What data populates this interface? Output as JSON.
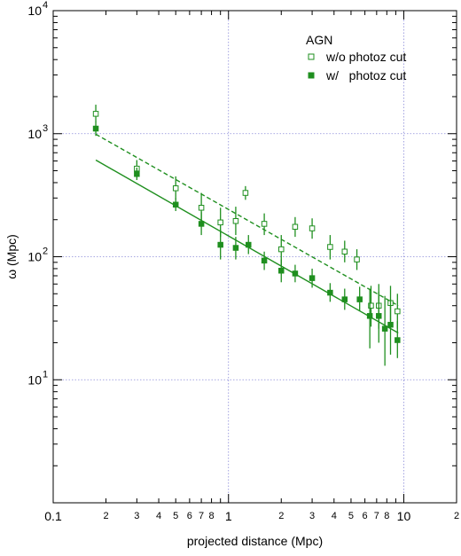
{
  "chart_data": {
    "type": "scatter",
    "title": "",
    "xlabel": "projected distance (Mpc)",
    "ylabel": "ω (Mpc)",
    "x_scale": "log",
    "y_scale": "log",
    "xlim": [
      0.1,
      20
    ],
    "ylim": [
      1,
      10000
    ],
    "grid": "dotted lines at major decades",
    "legend_placement": "top-right",
    "legend_title": "AGN",
    "x_major_ticks": [
      {
        "value": 0.1,
        "label": "0.1"
      },
      {
        "value": 1,
        "label": "1"
      },
      {
        "value": 10,
        "label": "10"
      }
    ],
    "x_minor_labels": [
      {
        "value": 0.2,
        "label": "2"
      },
      {
        "value": 0.3,
        "label": "3"
      },
      {
        "value": 0.4,
        "label": "4"
      },
      {
        "value": 0.5,
        "label": "5"
      },
      {
        "value": 0.6,
        "label": "6"
      },
      {
        "value": 0.7,
        "label": "7"
      },
      {
        "value": 0.8,
        "label": "8"
      },
      {
        "value": 2,
        "label": "2"
      },
      {
        "value": 3,
        "label": "3"
      },
      {
        "value": 4,
        "label": "4"
      },
      {
        "value": 5,
        "label": "5"
      },
      {
        "value": 6,
        "label": "6"
      },
      {
        "value": 7,
        "label": "7"
      },
      {
        "value": 8,
        "label": "8"
      },
      {
        "value": 20,
        "label": "2"
      }
    ],
    "y_major_ticks": [
      {
        "value": 10,
        "base": "10",
        "exp": "1"
      },
      {
        "value": 100,
        "base": "10",
        "exp": "2"
      },
      {
        "value": 1000,
        "base": "10",
        "exp": "3"
      },
      {
        "value": 10000,
        "base": "10",
        "exp": "4"
      }
    ],
    "series": [
      {
        "name": "w/o photoz cut",
        "marker": "open-square",
        "color": "#1f8f1f",
        "points": [
          {
            "x": 0.175,
            "y": 1450,
            "lo": 1240,
            "hi": 1720
          },
          {
            "x": 0.3,
            "y": 520,
            "lo": 450,
            "hi": 610
          },
          {
            "x": 0.5,
            "y": 360,
            "lo": 290,
            "hi": 450
          },
          {
            "x": 0.7,
            "y": 250,
            "lo": 190,
            "hi": 330
          },
          {
            "x": 0.9,
            "y": 190,
            "lo": 145,
            "hi": 250
          },
          {
            "x": 1.1,
            "y": 195,
            "lo": 150,
            "hi": 255
          },
          {
            "x": 1.25,
            "y": 330,
            "lo": 290,
            "hi": 375
          },
          {
            "x": 1.6,
            "y": 185,
            "lo": 150,
            "hi": 225
          },
          {
            "x": 2.0,
            "y": 115,
            "lo": 85,
            "hi": 150
          },
          {
            "x": 2.4,
            "y": 175,
            "lo": 145,
            "hi": 210
          },
          {
            "x": 3.0,
            "y": 170,
            "lo": 140,
            "hi": 205
          },
          {
            "x": 3.8,
            "y": 120,
            "lo": 95,
            "hi": 150
          },
          {
            "x": 4.6,
            "y": 110,
            "lo": 90,
            "hi": 135
          },
          {
            "x": 5.4,
            "y": 95,
            "lo": 78,
            "hi": 115
          },
          {
            "x": 6.5,
            "y": 40,
            "lo": 27,
            "hi": 58
          },
          {
            "x": 7.2,
            "y": 40,
            "lo": 26,
            "hi": 60
          },
          {
            "x": 8.4,
            "y": 42,
            "lo": 30,
            "hi": 58
          },
          {
            "x": 9.2,
            "y": 36,
            "lo": 26,
            "hi": 50
          }
        ],
        "fit": {
          "style": "dashed",
          "x": [
            0.175,
            9.3
          ],
          "y": [
            990,
            40
          ]
        }
      },
      {
        "name": "w/   photoz cut",
        "marker": "filled-square",
        "color": "#1f8f1f",
        "points": [
          {
            "x": 0.175,
            "y": 1100,
            "lo": 960,
            "hi": 1250
          },
          {
            "x": 0.3,
            "y": 470,
            "lo": 420,
            "hi": 530
          },
          {
            "x": 0.5,
            "y": 265,
            "lo": 235,
            "hi": 300
          },
          {
            "x": 0.7,
            "y": 185,
            "lo": 150,
            "hi": 230
          },
          {
            "x": 0.9,
            "y": 125,
            "lo": 95,
            "hi": 165
          },
          {
            "x": 1.1,
            "y": 118,
            "lo": 95,
            "hi": 145
          },
          {
            "x": 1.3,
            "y": 125,
            "lo": 105,
            "hi": 150
          },
          {
            "x": 1.6,
            "y": 93,
            "lo": 78,
            "hi": 110
          },
          {
            "x": 2.0,
            "y": 77,
            "lo": 62,
            "hi": 95
          },
          {
            "x": 2.4,
            "y": 73,
            "lo": 62,
            "hi": 86
          },
          {
            "x": 3.0,
            "y": 67,
            "lo": 56,
            "hi": 80
          },
          {
            "x": 3.8,
            "y": 51,
            "lo": 43,
            "hi": 61
          },
          {
            "x": 4.6,
            "y": 45,
            "lo": 37,
            "hi": 55
          },
          {
            "x": 5.6,
            "y": 45,
            "lo": 36,
            "hi": 57
          },
          {
            "x": 6.4,
            "y": 33,
            "lo": 18,
            "hi": 55
          },
          {
            "x": 7.2,
            "y": 33,
            "lo": 20,
            "hi": 52
          },
          {
            "x": 7.8,
            "y": 26,
            "lo": 13,
            "hi": 48
          },
          {
            "x": 8.4,
            "y": 28,
            "lo": 16,
            "hi": 45
          },
          {
            "x": 9.2,
            "y": 21,
            "lo": 15,
            "hi": 30
          }
        ],
        "fit": {
          "style": "solid",
          "x": [
            0.175,
            9.3
          ],
          "y": [
            610,
            24
          ]
        }
      }
    ]
  }
}
